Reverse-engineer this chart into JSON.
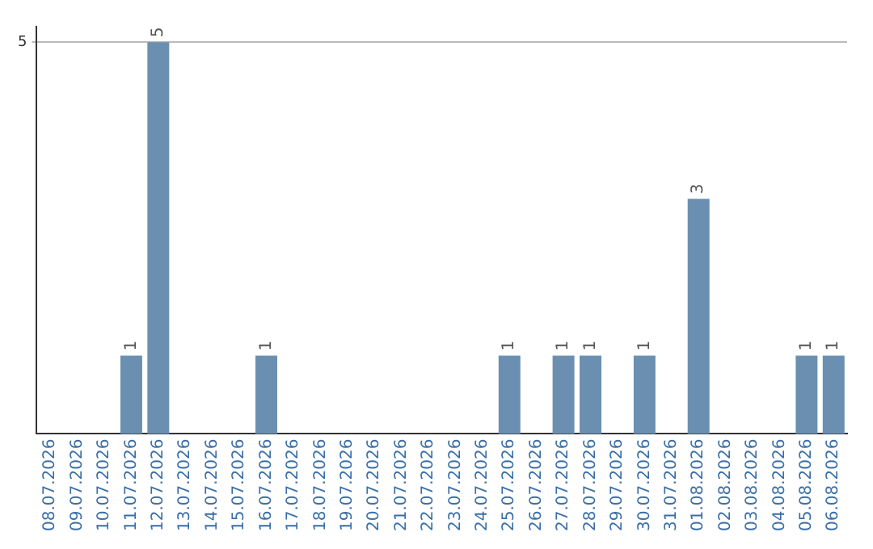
{
  "chart_data": {
    "type": "bar",
    "categories": [
      "08.07.2026",
      "09.07.2026",
      "10.07.2026",
      "11.07.2026",
      "12.07.2026",
      "13.07.2026",
      "14.07.2026",
      "15.07.2026",
      "16.07.2026",
      "17.07.2026",
      "18.07.2026",
      "19.07.2026",
      "20.07.2026",
      "21.07.2026",
      "22.07.2026",
      "23.07.2026",
      "24.07.2026",
      "25.07.2026",
      "26.07.2026",
      "27.07.2026",
      "28.07.2026",
      "29.07.2026",
      "30.07.2026",
      "31.07.2026",
      "01.08.2026",
      "02.08.2026",
      "03.08.2026",
      "04.08.2026",
      "05.08.2026",
      "06.08.2026"
    ],
    "values": [
      0,
      0,
      0,
      1,
      5,
      0,
      0,
      0,
      1,
      0,
      0,
      0,
      0,
      0,
      0,
      0,
      0,
      1,
      0,
      1,
      1,
      0,
      1,
      0,
      3,
      0,
      0,
      0,
      1,
      1
    ],
    "value_labels": [
      null,
      null,
      null,
      "1",
      "5",
      null,
      null,
      null,
      "1",
      null,
      null,
      null,
      null,
      null,
      null,
      null,
      null,
      "1",
      null,
      "1",
      "1",
      null,
      "1",
      null,
      "3",
      null,
      null,
      null,
      "1",
      "1"
    ],
    "color": "#6b8fb0",
    "ylim": [
      0,
      5.2
    ],
    "yticks": [
      5
    ],
    "grid": "y"
  }
}
